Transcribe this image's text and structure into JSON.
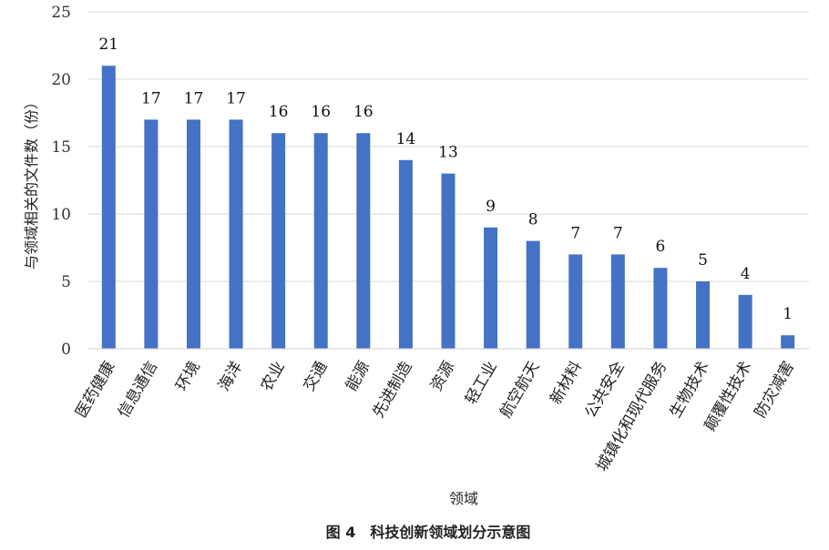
{
  "chart_data": {
    "type": "bar",
    "categories": [
      "医药健康",
      "信息通信",
      "环境",
      "海洋",
      "农业",
      "交通",
      "能源",
      "先进制造",
      "资源",
      "轻工业",
      "航空航天",
      "新材料",
      "公共安全",
      "城镇化和现代服务",
      "生物技术",
      "颠覆性技术",
      "防灾减害"
    ],
    "values": [
      21,
      17,
      17,
      17,
      16,
      16,
      16,
      14,
      13,
      9,
      8,
      7,
      7,
      6,
      5,
      4,
      1
    ],
    "xlabel": "领域",
    "ylabel": "与领域相关的文件数（份）",
    "ylim": [
      0,
      25
    ],
    "yticks": [
      0,
      5,
      10,
      15,
      20,
      25
    ],
    "grid": true,
    "bar_color": "#4472c4",
    "caption": "图 4　科技创新领域划分示意图"
  }
}
